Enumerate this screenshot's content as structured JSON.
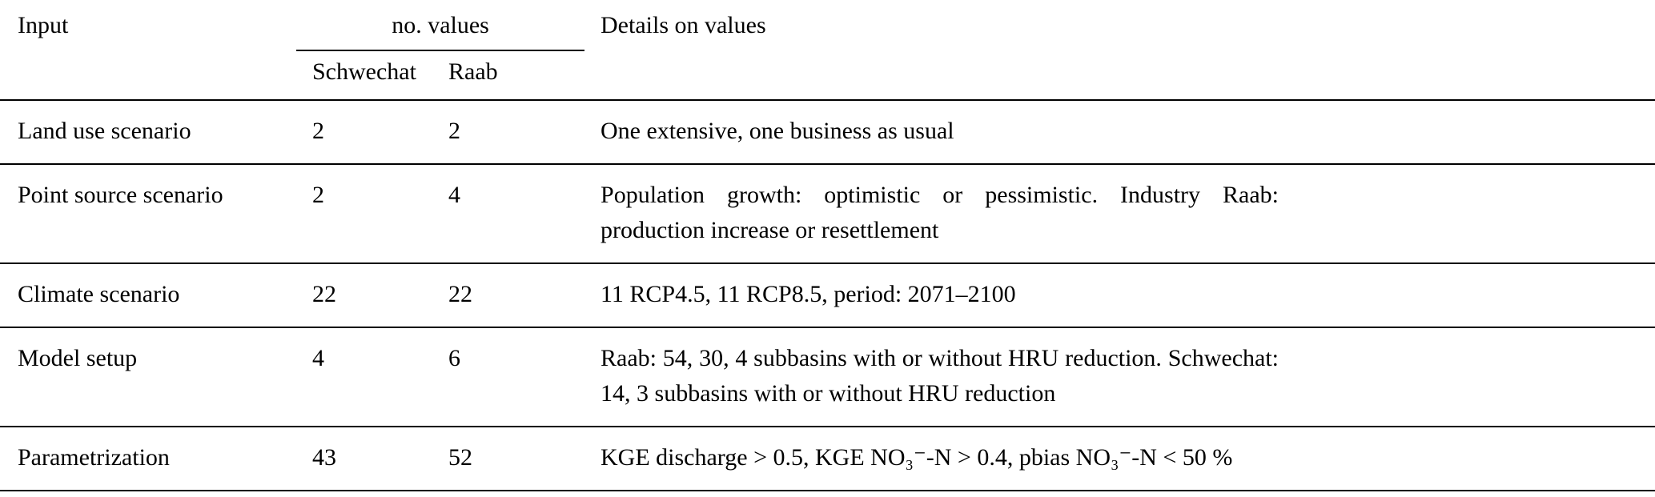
{
  "table": {
    "header": {
      "input": "Input",
      "no_values": "no. values",
      "details": "Details on values",
      "subcolumns": [
        "Schwechat",
        "Raab"
      ]
    },
    "rows": [
      {
        "input": "Land use scenario",
        "schwechat": "2",
        "raab": "2",
        "details": "One extensive, one business as usual"
      },
      {
        "input": "Point source scenario",
        "schwechat": "2",
        "raab": "4",
        "details": "Population growth: optimistic or pessimistic. Industry Raab: production increase or resettlement"
      },
      {
        "input": "Climate scenario",
        "schwechat": "22",
        "raab": "22",
        "details": "11 RCP4.5, 11 RCP8.5, period: 2071–2100"
      },
      {
        "input": "Model setup",
        "schwechat": "4",
        "raab": "6",
        "details": "Raab: 54, 30, 4 subbasins with or without HRU reduction. Schwechat: 14, 3 subbasins with or without HRU reduction"
      },
      {
        "input": "Parametrization",
        "schwechat": "43",
        "raab": "52",
        "details": "KGE discharge > 0.5, KGE NO₃⁻-N > 0.4, pbias NO₃⁻-N < 50 %"
      }
    ]
  }
}
